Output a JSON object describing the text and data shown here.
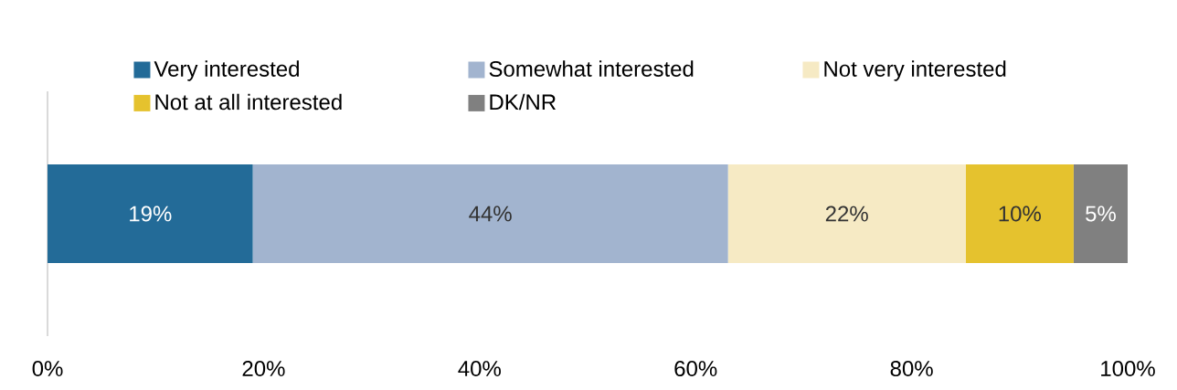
{
  "chart_data": {
    "type": "bar",
    "orientation": "horizontal",
    "stacked": true,
    "categories": [
      null
    ],
    "series": [
      {
        "name": "Very interested",
        "color": "#236b98",
        "values": [
          19
        ],
        "value_labels": [
          "19%"
        ]
      },
      {
        "name": "Somewhat interested",
        "color": "#a2b4cf",
        "values": [
          44
        ],
        "value_labels": [
          "44%"
        ]
      },
      {
        "name": "Not very interested",
        "color": "#f6eac4",
        "values": [
          22
        ],
        "value_labels": [
          "22%"
        ]
      },
      {
        "name": "Not at all interested",
        "color": "#e5c22e",
        "values": [
          10
        ],
        "value_labels": [
          "10%"
        ]
      },
      {
        "name": "DK/NR",
        "color": "#808080",
        "values": [
          5
        ],
        "value_labels": [
          "5%"
        ]
      }
    ],
    "xlim": [
      0,
      100
    ],
    "xticks": [
      {
        "value": 0,
        "label": "0%"
      },
      {
        "value": 20,
        "label": "20%"
      },
      {
        "value": 40,
        "label": "40%"
      },
      {
        "value": 60,
        "label": "60%"
      },
      {
        "value": 80,
        "label": "80%"
      },
      {
        "value": 100,
        "label": "100%"
      }
    ],
    "grid": false,
    "legend": "top"
  }
}
